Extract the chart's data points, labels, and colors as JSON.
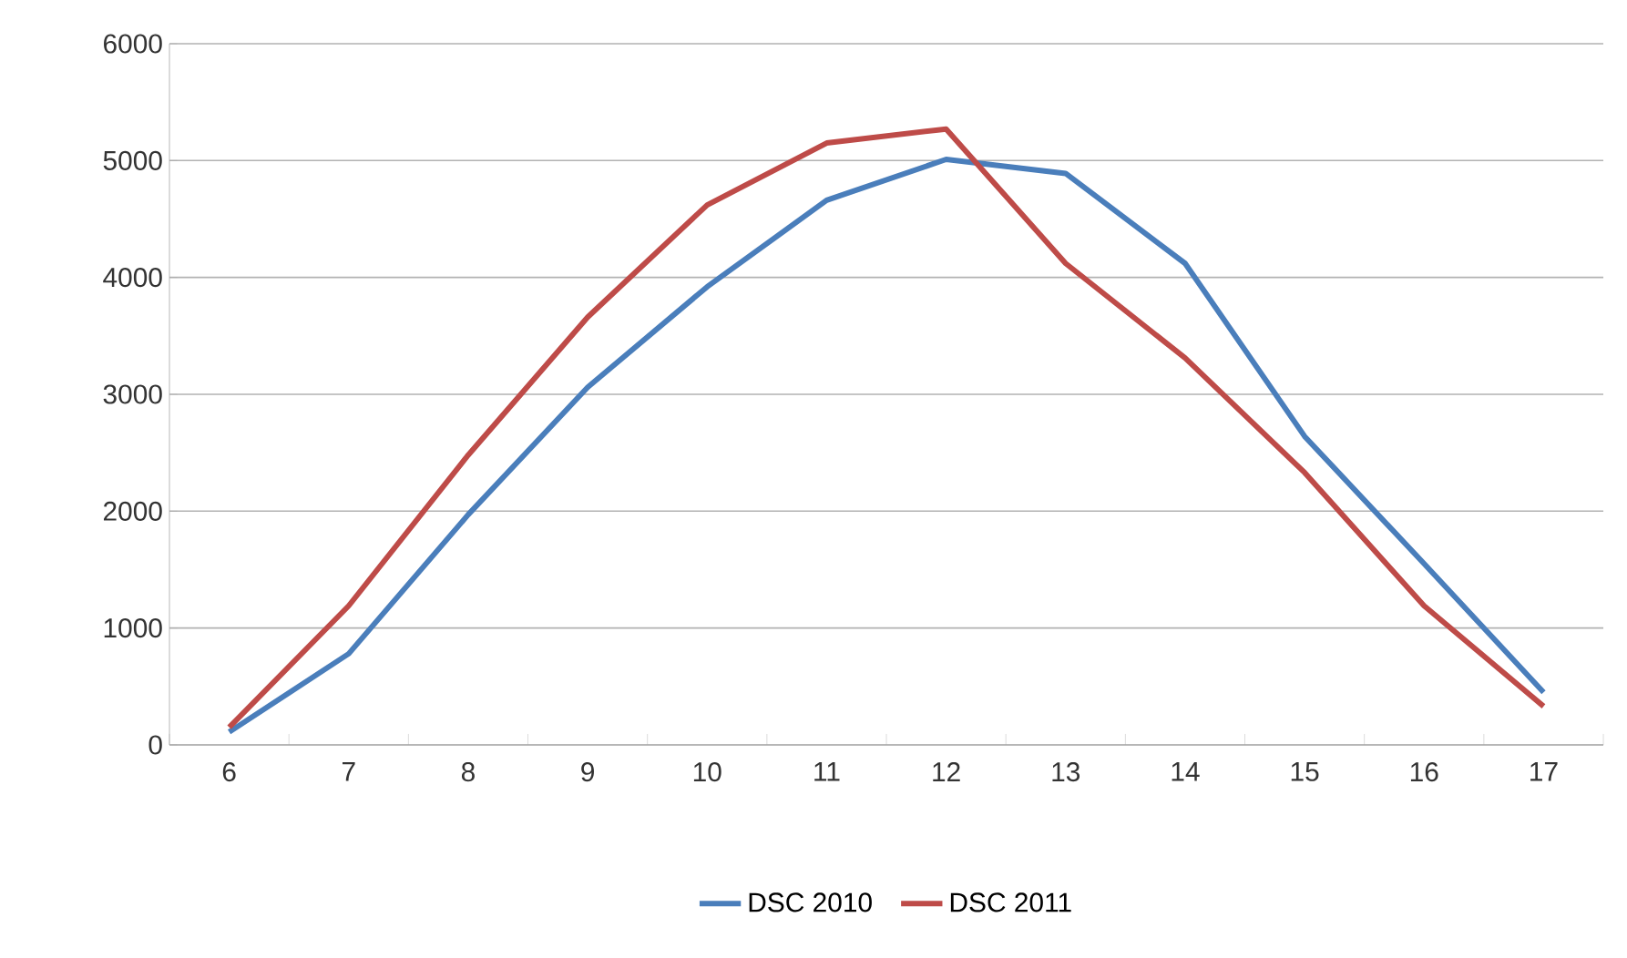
{
  "chart_data": {
    "type": "line",
    "categories": [
      "6",
      "7",
      "8",
      "9",
      "10",
      "11",
      "12",
      "13",
      "14",
      "15",
      "16",
      "17"
    ],
    "series": [
      {
        "name": "DSC 2010",
        "color": "#4a7ebb",
        "values": [
          110,
          780,
          1970,
          3060,
          3920,
          4660,
          5010,
          4890,
          4120,
          2640,
          1550,
          450
        ]
      },
      {
        "name": "DSC 2011",
        "color": "#be4b48",
        "values": [
          150,
          1190,
          2480,
          3660,
          4620,
          5150,
          5270,
          4120,
          3310,
          2330,
          1190,
          330
        ]
      }
    ],
    "ylim": [
      0,
      6000
    ],
    "yticks": [
      0,
      1000,
      2000,
      3000,
      4000,
      5000,
      6000
    ],
    "grid": "y",
    "legend": "bottom",
    "marker": "none",
    "line_style": "solid"
  }
}
